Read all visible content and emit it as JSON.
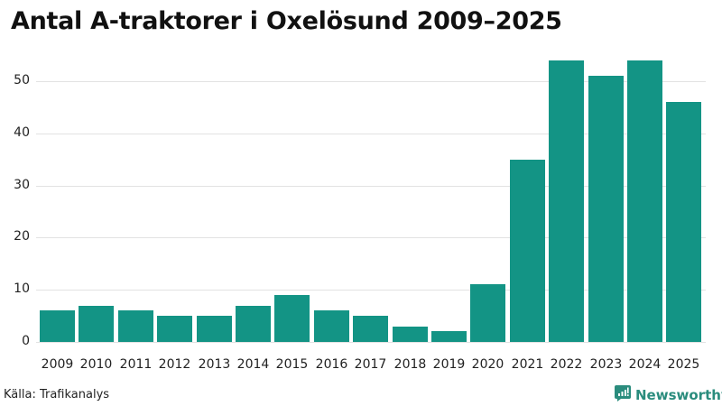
{
  "chart_data": {
    "type": "bar",
    "title": "Antal A-traktorer i Oxelösund 2009–2025",
    "xlabel": "",
    "ylabel": "",
    "categories": [
      "2009",
      "2010",
      "2011",
      "2012",
      "2013",
      "2014",
      "2015",
      "2016",
      "2017",
      "2018",
      "2019",
      "2020",
      "2021",
      "2022",
      "2023",
      "2024",
      "2025"
    ],
    "values": [
      6,
      7,
      6,
      5,
      5,
      7,
      9,
      6,
      5,
      3,
      2,
      11,
      35,
      54,
      51,
      54,
      46
    ],
    "ylim": [
      0,
      55
    ],
    "yticks": [
      0,
      10,
      20,
      30,
      40,
      50
    ],
    "grid": true,
    "legend": null,
    "bar_color": "#139485"
  },
  "header": {
    "title": "Antal A-traktorer i Oxelösund 2009–2025"
  },
  "footer": {
    "source": "Källa: Trafikanalys",
    "brand": "Newsworthy",
    "brand_icon": "newsworthy-logo-icon",
    "brand_color": "#2a8c7d"
  }
}
